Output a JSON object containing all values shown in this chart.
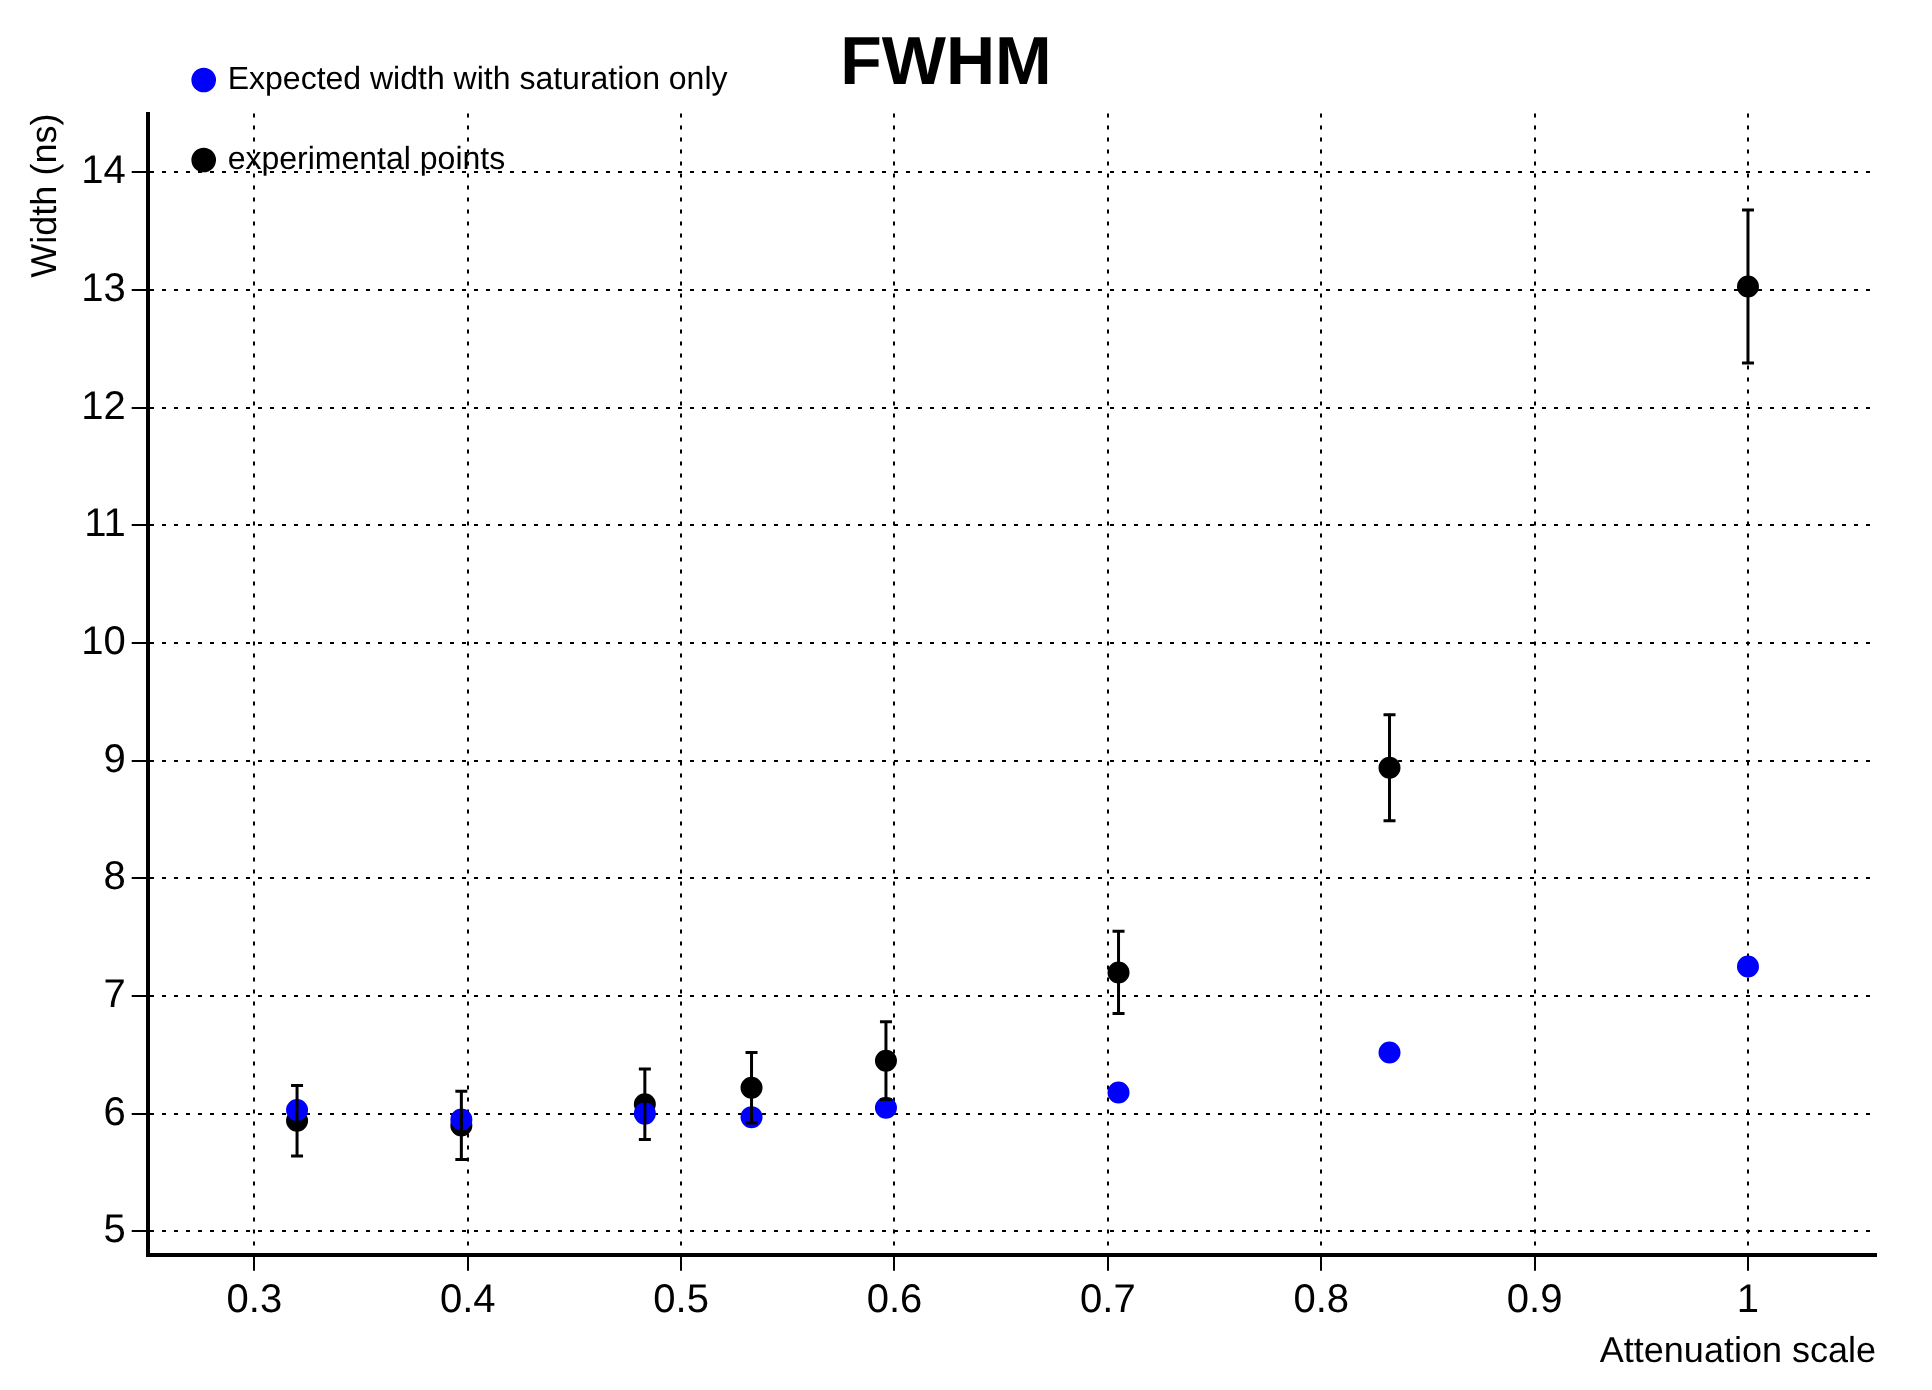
{
  "chart_data": {
    "type": "scatter",
    "title": "FWHM",
    "xlabel": "Attenuation scale",
    "ylabel": "Width (ns)",
    "xlim": [
      0.25,
      1.06
    ],
    "ylim": [
      4.8,
      14.5
    ],
    "xticks": [
      0.3,
      0.4,
      0.5,
      0.6,
      0.7,
      0.8,
      0.9,
      1
    ],
    "yticks": [
      5,
      6,
      7,
      8,
      9,
      10,
      11,
      12,
      13,
      14
    ],
    "grid": true,
    "legend": "top left",
    "marker": "circle",
    "series": [
      {
        "name": "experimental points",
        "color": "#000000",
        "x": [
          0.32,
          0.397,
          0.483,
          0.533,
          0.596,
          0.705,
          0.832,
          1.0
        ],
        "values": [
          5.94,
          5.9,
          6.08,
          6.22,
          6.45,
          7.2,
          8.94,
          13.03
        ],
        "errors": [
          0.3,
          0.29,
          0.3,
          0.3,
          0.33,
          0.35,
          0.45,
          0.65
        ]
      },
      {
        "name": "Expected width with saturation only",
        "color": "#0000ff",
        "x": [
          0.32,
          0.397,
          0.483,
          0.533,
          0.596,
          0.705,
          0.832,
          1.0
        ],
        "values": [
          6.03,
          5.95,
          6.0,
          5.97,
          6.05,
          6.18,
          6.52,
          7.25
        ]
      }
    ]
  }
}
